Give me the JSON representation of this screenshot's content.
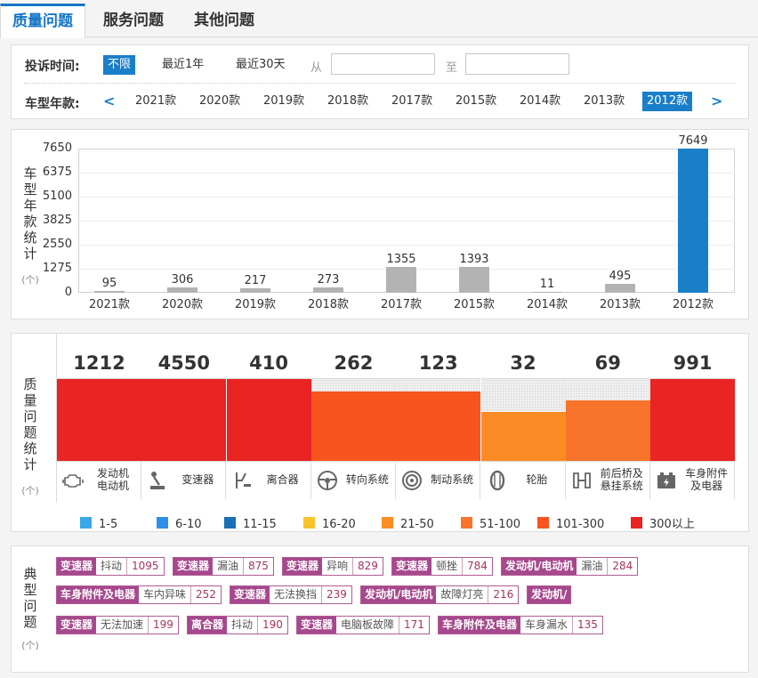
{
  "tabs": [
    "质量问题",
    "服务问题",
    "其他问题"
  ],
  "filter": {
    "time_label": "投诉时间:",
    "time_options": [
      "不限",
      "最近1年",
      "最近30天"
    ],
    "from_label": "从",
    "to_label": "至",
    "from_value": "",
    "to_value": "",
    "model_label": "车型年款:",
    "prev_arrow": "<",
    "next_arrow": ">",
    "years": [
      "2021款",
      "2020款",
      "2019款",
      "2018款",
      "2017款",
      "2015款",
      "2014款",
      "2013款",
      "2012款"
    ],
    "selected_year": "2012款"
  },
  "year_chart": {
    "side_label": [
      "车",
      "型",
      "年",
      "款",
      "统",
      "计"
    ],
    "unit": "(个)",
    "chart_data": {
      "type": "bar",
      "categories": [
        "2021款",
        "2020款",
        "2019款",
        "2018款",
        "2017款",
        "2015款",
        "2014款",
        "2013款",
        "2012款"
      ],
      "values": [
        95,
        306,
        217,
        273,
        1355,
        1393,
        11,
        495,
        7649
      ],
      "value_labels": [
        "95",
        "306",
        "217",
        "273",
        "1355",
        "1393",
        "11",
        "495",
        "7649"
      ],
      "highlight": "2012款",
      "yticks": [
        0,
        1275,
        2550,
        3825,
        5100,
        6375,
        7650
      ],
      "ytick_labels": [
        "0",
        "1275",
        "2550",
        "3825",
        "5100",
        "6375",
        "7650"
      ],
      "ylim": [
        0,
        7650
      ],
      "title": "",
      "xlabel": "",
      "ylabel": "车型年款统计(个)",
      "grid": true
    }
  },
  "quality": {
    "side_label": [
      "质",
      "量",
      "问",
      "题",
      "统",
      "计"
    ],
    "unit": "(个)",
    "columns": [
      {
        "count": "1212",
        "level": 1.0,
        "color": "#ea2323",
        "icon": "engine-icon",
        "label1": "发动机",
        "label2": "电动机"
      },
      {
        "count": "4550",
        "level": 1.0,
        "color": "#ea2323",
        "icon": "gear-shifter-icon",
        "label1": "变速器",
        "label2": ""
      },
      {
        "count": "410",
        "level": 1.0,
        "color": "#ea2323",
        "icon": "clutch-pedal-icon",
        "label1": "离合器",
        "label2": ""
      },
      {
        "count": "262",
        "level": 0.85,
        "color": "#f7541e",
        "icon": "steering-wheel-icon",
        "label1": "转向系统",
        "label2": ""
      },
      {
        "count": "123",
        "level": 0.85,
        "color": "#f7541e",
        "icon": "brake-disc-icon",
        "label1": "制动系统",
        "label2": ""
      },
      {
        "count": "32",
        "level": 0.6,
        "color": "#fa8b25",
        "icon": "tire-icon",
        "label1": "轮胎",
        "label2": ""
      },
      {
        "count": "69",
        "level": 0.74,
        "color": "#f7742a",
        "icon": "suspension-icon",
        "label1": "前后桥及",
        "label2": "悬挂系统"
      },
      {
        "count": "991",
        "level": 1.0,
        "color": "#ea2323",
        "icon": "battery-icon",
        "label1": "车身附件",
        "label2": "及电器"
      }
    ],
    "legend": [
      {
        "label": "1-5",
        "color": "#3aa7e8"
      },
      {
        "label": "6-10",
        "color": "#2d8fe6"
      },
      {
        "label": "11-15",
        "color": "#1a6fb5"
      },
      {
        "label": "16-20",
        "color": "#f7c42a"
      },
      {
        "label": "21-50",
        "color": "#fa8b25"
      },
      {
        "label": "51-100",
        "color": "#f7742a"
      },
      {
        "label": "101-300",
        "color": "#f7541e"
      },
      {
        "label": "300以上",
        "color": "#ea2323"
      }
    ]
  },
  "typical": {
    "side_label": [
      "典",
      "型",
      "问",
      "题"
    ],
    "unit": "(个)",
    "tags": [
      {
        "category": "变速器",
        "issue": "抖动",
        "count": "1095"
      },
      {
        "category": "变速器",
        "issue": "漏油",
        "count": "875"
      },
      {
        "category": "变速器",
        "issue": "异响",
        "count": "829"
      },
      {
        "category": "变速器",
        "issue": "顿挫",
        "count": "784"
      },
      {
        "category": "发动机/电动机",
        "issue": "漏油",
        "count": "284"
      },
      {
        "category": "车身附件及电器",
        "issue": "车内异味",
        "count": "252"
      },
      {
        "category": "变速器",
        "issue": "无法换挡",
        "count": "239"
      },
      {
        "category": "发动机/电动机",
        "issue": "故障灯亮",
        "count": "216"
      },
      {
        "category": "发动机/",
        "issue": "",
        "count": ""
      },
      {
        "category": "变速器",
        "issue": "无法加速",
        "count": "199"
      },
      {
        "category": "离合器",
        "issue": "抖动",
        "count": "190"
      },
      {
        "category": "变速器",
        "issue": "电脑板故障",
        "count": "171"
      },
      {
        "category": "车身附件及电器",
        "issue": "车身漏水",
        "count": "135"
      }
    ]
  }
}
